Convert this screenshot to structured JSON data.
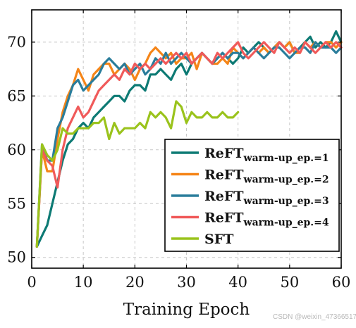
{
  "watermark": "CSDN @weixin_47366517",
  "chart_data": {
    "type": "line",
    "title": "",
    "xlabel": "Training Epoch",
    "ylabel": "",
    "xlim": [
      0,
      60
    ],
    "ylim": [
      49,
      73
    ],
    "xticks": [
      0,
      10,
      20,
      30,
      40,
      50,
      60
    ],
    "yticks": [
      50,
      55,
      60,
      65,
      70
    ],
    "grid": true,
    "legend_position": "lower-right",
    "series": [
      {
        "name": "ReFT",
        "name_sub": "warm-up_ep.=1",
        "color": "#0d7a74",
        "x": [
          1,
          2,
          3,
          4,
          5,
          6,
          7,
          8,
          9,
          10,
          11,
          12,
          13,
          14,
          15,
          16,
          17,
          18,
          19,
          20,
          21,
          22,
          23,
          24,
          25,
          26,
          27,
          28,
          29,
          30,
          31,
          32,
          33,
          34,
          35,
          36,
          37,
          38,
          39,
          40,
          41,
          42,
          43,
          44,
          45,
          46,
          47,
          48,
          49,
          50,
          51,
          52,
          53,
          54,
          55,
          56,
          57,
          58,
          59,
          60
        ],
        "y": [
          51,
          52,
          53,
          55,
          57,
          59,
          60.5,
          61,
          62,
          62.5,
          62,
          63,
          63.5,
          64,
          64.5,
          65,
          65,
          64.5,
          65.5,
          66,
          66,
          65.5,
          67,
          67,
          67.5,
          67,
          66.5,
          67.5,
          68,
          67,
          68,
          68.5,
          69,
          68.5,
          68,
          68.5,
          69,
          68.5,
          68,
          68.5,
          69.5,
          69,
          69.5,
          70,
          69.5,
          69,
          69.5,
          70,
          69.5,
          70,
          69,
          69.5,
          70,
          70.5,
          69.5,
          70,
          69.5,
          70,
          71,
          70
        ]
      },
      {
        "name": "ReFT",
        "name_sub": "warm-up_ep.=2",
        "color": "#f58518",
        "x": [
          1,
          2,
          3,
          4,
          5,
          6,
          7,
          8,
          9,
          10,
          11,
          12,
          13,
          14,
          15,
          16,
          17,
          18,
          19,
          20,
          21,
          22,
          23,
          24,
          25,
          26,
          27,
          28,
          29,
          30,
          31,
          32,
          33,
          34,
          35,
          36,
          37,
          38,
          39,
          40,
          41,
          42,
          43,
          44,
          45,
          46,
          47,
          48,
          49,
          50,
          51,
          52,
          53,
          54,
          55,
          56,
          57,
          58,
          59,
          60
        ],
        "y": [
          51,
          60,
          58,
          58,
          61,
          63.5,
          65,
          66,
          67.5,
          66.5,
          65.5,
          67,
          67.5,
          68,
          68,
          67,
          67.5,
          68,
          67.5,
          66.5,
          67.5,
          68,
          69,
          69.5,
          69,
          68.5,
          69,
          68,
          68.5,
          68.5,
          69,
          67.5,
          69,
          68.5,
          68,
          68,
          68.5,
          68,
          69.5,
          69,
          68.5,
          69,
          69.5,
          69,
          69.5,
          69,
          69.5,
          70,
          69.5,
          70,
          69,
          69,
          70,
          69.5,
          70,
          69.5,
          70,
          70,
          69.5,
          70
        ]
      },
      {
        "name": "ReFT",
        "name_sub": "warm-up_ep.=3",
        "color": "#2a7d9b",
        "x": [
          1,
          2,
          3,
          4,
          5,
          6,
          7,
          8,
          9,
          10,
          11,
          12,
          13,
          14,
          15,
          16,
          17,
          18,
          19,
          20,
          21,
          22,
          23,
          24,
          25,
          26,
          27,
          28,
          29,
          30,
          31,
          32,
          33,
          34,
          35,
          36,
          37,
          38,
          39,
          40,
          41,
          42,
          43,
          44,
          45,
          46,
          47,
          48,
          49,
          50,
          51,
          52,
          53,
          54,
          55,
          56,
          57,
          58,
          59,
          60
        ],
        "y": [
          51,
          60.5,
          59,
          59,
          62,
          63,
          64.5,
          66,
          66.5,
          65.5,
          66,
          66.5,
          67,
          68,
          68.5,
          68,
          67.5,
          68,
          67,
          67.5,
          68,
          67,
          67.5,
          68.5,
          68,
          69,
          68,
          68.5,
          69,
          68.5,
          68,
          68.5,
          69,
          68.5,
          68,
          68.5,
          69,
          68.5,
          69,
          69,
          68.5,
          69,
          69.5,
          69,
          68.5,
          69,
          69.5,
          69.5,
          69,
          68.5,
          69,
          69.5,
          69.5,
          69,
          70,
          69.5,
          69.5,
          69.5,
          69,
          69.5
        ]
      },
      {
        "name": "ReFT",
        "name_sub": "warm-up_ep.=4",
        "color": "#f05a5a",
        "x": [
          1,
          2,
          3,
          4,
          5,
          6,
          7,
          8,
          9,
          10,
          11,
          12,
          13,
          14,
          15,
          16,
          17,
          18,
          19,
          20,
          21,
          22,
          23,
          24,
          25,
          26,
          27,
          28,
          29,
          30,
          31,
          32,
          33,
          34,
          35,
          36,
          37,
          38,
          39,
          40,
          41,
          42,
          43,
          44,
          45,
          46,
          47,
          48,
          49,
          50,
          51,
          52,
          53,
          54,
          55,
          56,
          57,
          58,
          59,
          60
        ],
        "y": [
          51,
          60,
          59,
          58.5,
          56.5,
          60,
          62,
          63,
          64,
          63,
          63.5,
          64.5,
          65.5,
          66,
          66.5,
          67,
          66.5,
          67.5,
          67,
          68,
          67.5,
          68,
          67.5,
          68,
          68.5,
          68,
          68.5,
          69,
          68.5,
          69,
          68,
          68.5,
          69,
          68.5,
          68,
          69,
          68.5,
          69,
          69.5,
          70,
          69,
          68.5,
          69,
          69.5,
          70,
          69.5,
          69,
          70,
          69.5,
          69,
          69.5,
          69,
          70,
          69.5,
          69,
          69.5,
          70,
          69.5,
          70,
          69.5
        ]
      },
      {
        "name": "SFT",
        "name_sub": "",
        "color": "#9ac31c",
        "x": [
          1,
          2,
          3,
          4,
          5,
          6,
          7,
          8,
          9,
          10,
          11,
          12,
          13,
          14,
          15,
          16,
          17,
          18,
          19,
          20,
          21,
          22,
          23,
          24,
          25,
          26,
          27,
          28,
          29,
          30,
          31,
          32,
          33,
          34,
          35,
          36,
          37,
          38,
          39,
          40
        ],
        "y": [
          51,
          60.5,
          59.5,
          59,
          60,
          62,
          61.5,
          61.5,
          62,
          62,
          62,
          62.5,
          62.5,
          63,
          61,
          62.5,
          61.5,
          62,
          62,
          62,
          62.5,
          62,
          63.5,
          63,
          63.5,
          63,
          62,
          64.5,
          64,
          62.5,
          63.5,
          63,
          63,
          63.5,
          63,
          63,
          63.5,
          63,
          63,
          63.5
        ]
      }
    ]
  }
}
